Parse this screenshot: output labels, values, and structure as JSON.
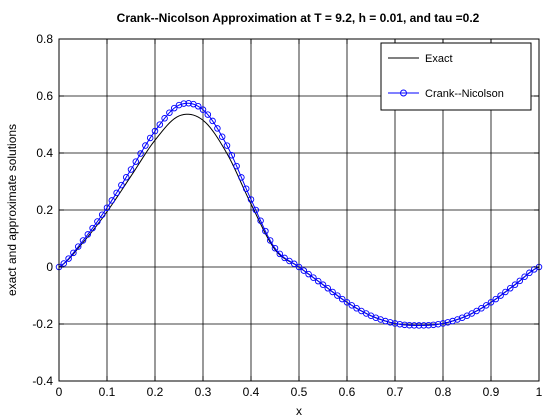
{
  "chart_data": {
    "type": "line",
    "title": "Crank--Nicolson Approximation at T = 9.2, h = 0.01, and tau =0.2",
    "xlabel": "x",
    "ylabel": "exact and approximate solutions",
    "xlim": [
      0,
      1
    ],
    "ylim": [
      -0.4,
      0.8
    ],
    "x_ticks": [
      "0",
      "0.1",
      "0.2",
      "0.3",
      "0.4",
      "0.5",
      "0.6",
      "0.7",
      "0.8",
      "0.9",
      "1"
    ],
    "y_ticks": [
      "-0.4",
      "-0.2",
      "0",
      "0.2",
      "0.4",
      "0.6",
      "0.8"
    ],
    "grid": true,
    "legend_position": "top-right",
    "x": [
      0,
      0.05,
      0.1,
      0.15,
      0.2,
      0.25,
      0.3,
      0.35,
      0.4,
      0.45,
      0.5,
      0.55,
      0.6,
      0.65,
      0.7,
      0.75,
      0.8,
      0.85,
      0.9,
      0.95,
      1
    ],
    "series": [
      {
        "name": "Exact",
        "color": "#000000",
        "marker": "none",
        "values": [
          0,
          0.086,
          0.194,
          0.319,
          0.445,
          0.53,
          0.515,
          0.398,
          0.221,
          0.061,
          0,
          -0.062,
          -0.124,
          -0.171,
          -0.198,
          -0.205,
          -0.198,
          -0.171,
          -0.124,
          -0.062,
          0
        ]
      },
      {
        "name": "Crank--Nicolson",
        "color": "#0000ff",
        "marker": "circle",
        "values": [
          0,
          0.093,
          0.208,
          0.342,
          0.477,
          0.568,
          0.552,
          0.426,
          0.237,
          0.066,
          0,
          -0.062,
          -0.124,
          -0.171,
          -0.198,
          -0.205,
          -0.198,
          -0.171,
          -0.124,
          -0.062,
          0
        ]
      }
    ]
  }
}
